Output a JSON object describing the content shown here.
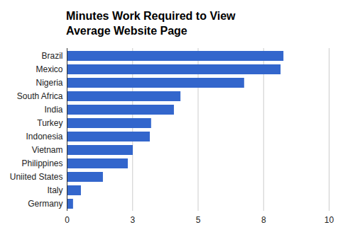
{
  "chart_data": {
    "type": "bar",
    "title": "Minutes Work Required to View Average Website Page",
    "orientation": "horizontal",
    "categories": [
      "Brazil",
      "Mexico",
      "Nigeria",
      "South Africa",
      "India",
      "Turkey",
      "Indonesia",
      "Vietnam",
      "Philippines",
      "Uniited States",
      "Italy",
      "Germany"
    ],
    "values": [
      8.27,
      8.16,
      6.77,
      4.34,
      4.09,
      3.22,
      3.17,
      2.52,
      2.33,
      1.38,
      0.54,
      0.24
    ],
    "color": "#3366cc",
    "xlim": [
      0,
      10
    ],
    "xticks": [
      0,
      {
        "value": 2.5,
        "label": "3"
      },
      5,
      {
        "value": 7.5,
        "label": "8"
      },
      10
    ],
    "grid": true
  }
}
